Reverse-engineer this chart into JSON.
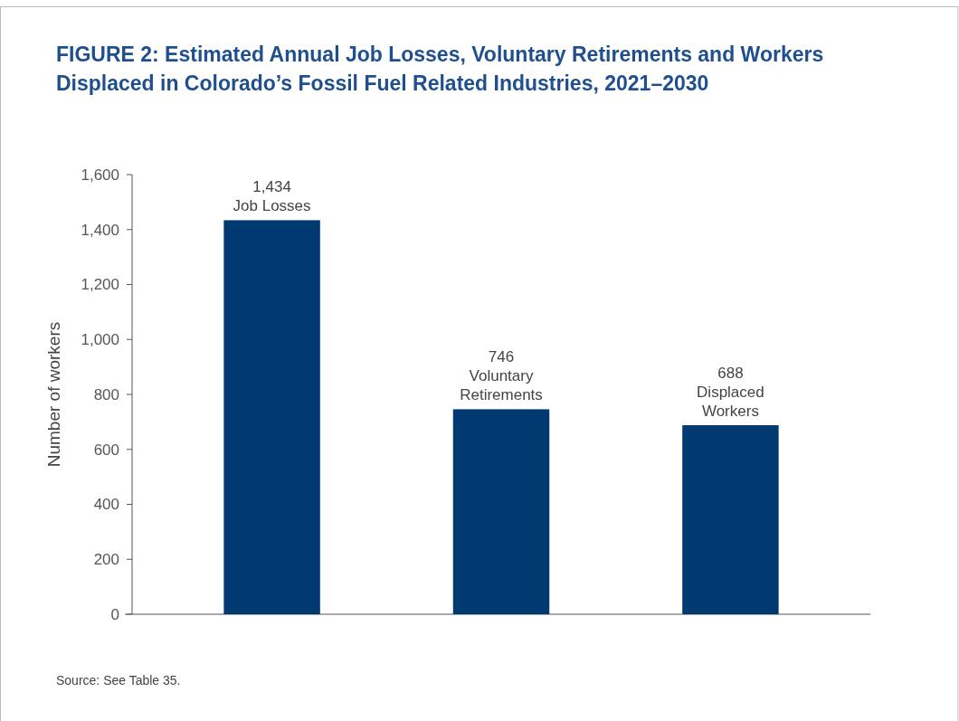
{
  "chart_data": {
    "type": "bar",
    "title": "FIGURE 2:  Estimated Annual Job Losses, Voluntary Retirements and Workers Displaced in Colorado’s Fossil Fuel Related Industries, 2021–2030",
    "ylabel": "Number of workers",
    "categories": [
      "Job Losses",
      "Voluntary Retirements",
      "Displaced Workers"
    ],
    "values": [
      1434,
      746,
      688
    ],
    "value_labels": [
      "1,434",
      "746",
      "688"
    ],
    "color": "#003a70",
    "ylim": [
      0,
      1600
    ],
    "yticks": [
      0,
      200,
      400,
      600,
      800,
      {
        "value": 1000,
        "label": "1,000"
      },
      {
        "value": 1200,
        "label": "1,200"
      },
      {
        "value": 1400,
        "label": "1,400"
      },
      {
        "value": 1600,
        "label": "1,600"
      }
    ],
    "grid": false,
    "annotations": [
      "Source: See Table 35."
    ]
  }
}
